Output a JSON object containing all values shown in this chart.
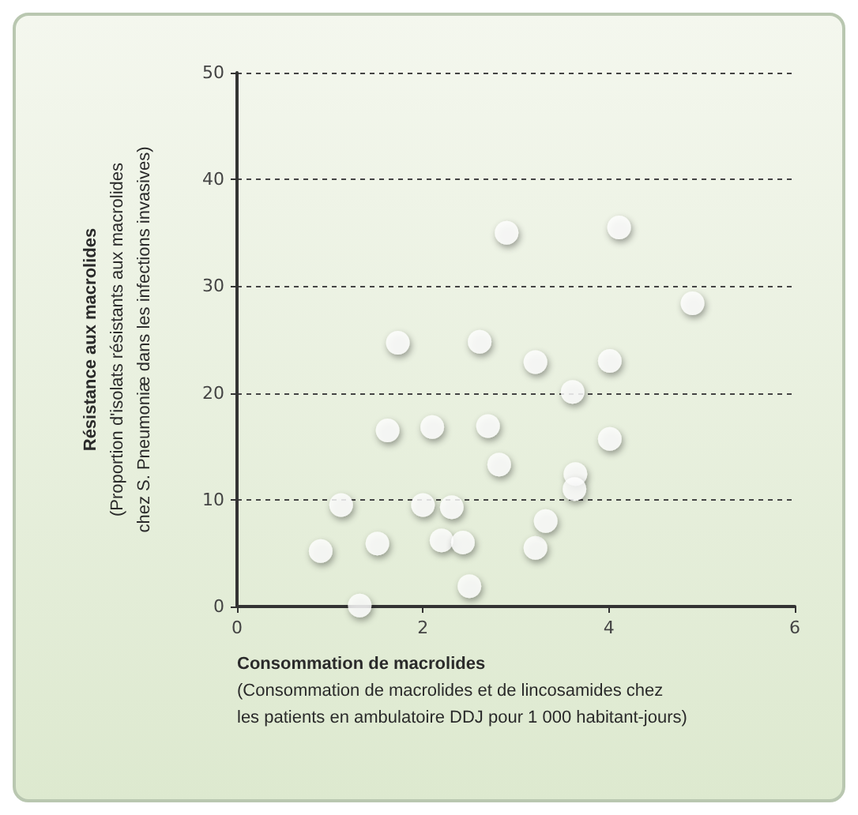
{
  "chart_data": {
    "type": "scatter",
    "xlabel": "Consommation de macrolides\n(Consommation de macrolides et de lincosamides chez\nles patients en ambulatoire DDJ pour 1 000 habitant-jours)",
    "ylabel": "Résistance aux macrolides\n(Proportion d'isolats résistants aux macrolides\nchez S. Pneumoniæ dans les infections invasives)",
    "x": [
      0.9,
      1.12,
      1.32,
      1.51,
      1.62,
      2.0,
      2.1,
      2.2,
      2.31,
      2.43,
      2.5,
      2.7,
      2.82,
      3.21,
      3.32,
      3.61,
      3.64,
      3.63,
      4.01,
      4.01,
      3.21,
      1.73,
      2.61,
      2.9,
      4.11,
      4.9
    ],
    "series": [
      {
        "color": "#ffffff",
        "values": [
          5.2,
          9.5,
          0.1,
          5.9,
          16.5,
          9.5,
          16.8,
          6.2,
          9.3,
          6.0,
          1.9,
          16.9,
          13.3,
          5.5,
          8.0,
          20.1,
          12.4,
          11.0,
          15.7,
          23.0,
          22.9,
          24.7,
          24.8,
          35.0,
          35.5,
          28.4
        ]
      }
    ],
    "xlim": [
      0,
      6
    ],
    "xticks": [
      0,
      2,
      4,
      6
    ],
    "ylim": [
      0,
      50
    ],
    "yticks": [
      0,
      10,
      20,
      30,
      40,
      50
    ],
    "grid": "y",
    "marker": "circle"
  }
}
